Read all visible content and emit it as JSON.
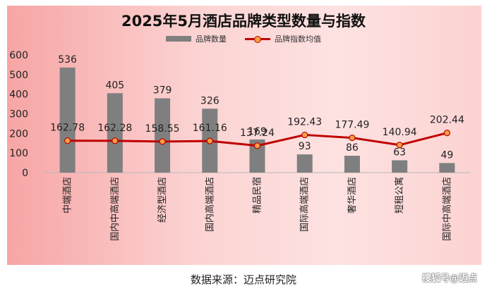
{
  "chart_data": {
    "type": "bar",
    "title": "2025年5月酒店品牌类型数量与指数",
    "categories": [
      "中端酒店",
      "国内中高端酒店",
      "经济型酒店",
      "国内高端酒店",
      "精品民宿",
      "国际高端酒店",
      "奢华酒店",
      "短租公寓",
      "国际中高端酒店"
    ],
    "series": [
      {
        "name": "品牌数量",
        "kind": "bar",
        "color": "#7f7f7f",
        "values": [
          536,
          405,
          379,
          326,
          169,
          93,
          86,
          63,
          49
        ]
      },
      {
        "name": "品牌指数均值",
        "kind": "line",
        "color": "#c00000",
        "marker_color": "#f5a142",
        "values": [
          162.78,
          162.28,
          158.55,
          161.16,
          137.24,
          192.43,
          177.49,
          140.94,
          202.44
        ]
      }
    ],
    "bar_labels": [
      "536",
      "405",
      "379",
      "326",
      "169",
      "93",
      "86",
      "63",
      "49"
    ],
    "line_labels": [
      "162.78",
      "162.28",
      "158.55",
      "161.16",
      "137.24",
      "192.43",
      "177.49",
      "140.94",
      "202.44"
    ],
    "ylim": [
      0,
      600
    ],
    "yticks": [
      "0",
      "100",
      "200",
      "300",
      "400",
      "500",
      "600"
    ],
    "legend_position": "top-center",
    "grid": false
  },
  "source_text": "数据来源：迈点研究院",
  "watermark_text": "搜狐号@迈点"
}
